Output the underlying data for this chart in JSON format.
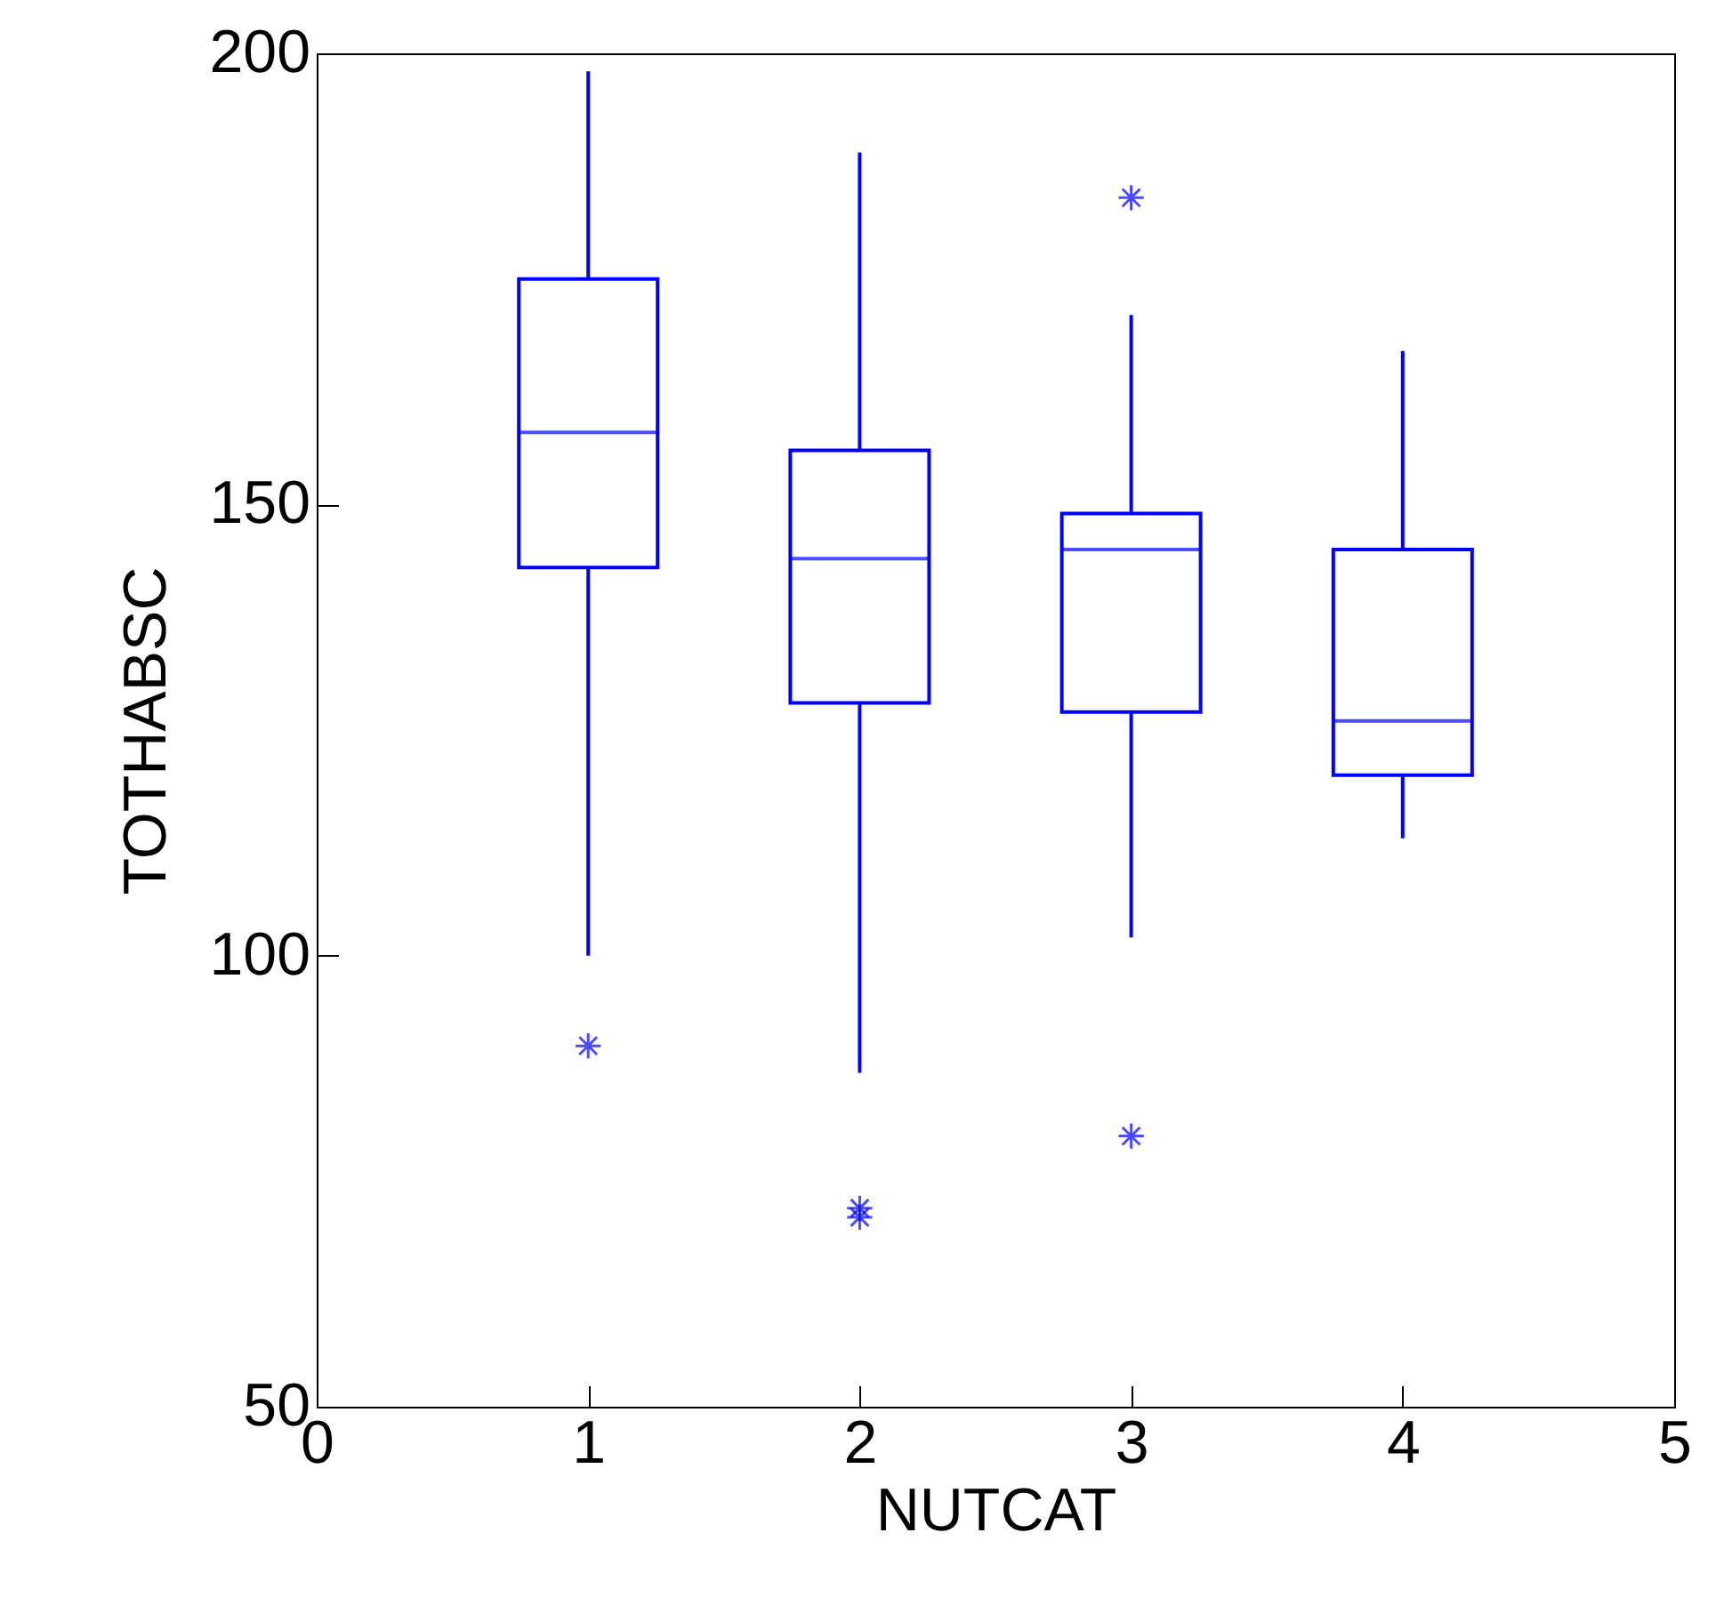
{
  "chart_data": {
    "type": "box",
    "xlabel": "NUTCAT",
    "ylabel": "TOTHABSC",
    "x": [
      1,
      2,
      3,
      4
    ],
    "xlim": [
      0,
      5
    ],
    "xticks": [
      0,
      1,
      2,
      3,
      4,
      5
    ],
    "ylim": [
      50,
      200
    ],
    "yticks": [
      50,
      100,
      150,
      200
    ],
    "grid": false,
    "series": [
      {
        "color": "#0000ff",
        "boxes": [
          {
            "low": 100,
            "q1": 143,
            "median": 158,
            "q3": 175,
            "high": 198,
            "outliers": [
              90
            ]
          },
          {
            "low": 87,
            "q1": 128,
            "median": 144,
            "q3": 156,
            "high": 189,
            "outliers": [
              72,
              71
            ]
          },
          {
            "low": 102,
            "q1": 127,
            "median": 145,
            "q3": 149,
            "high": 171,
            "outliers": [
              184,
              80
            ]
          },
          {
            "low": 113,
            "q1": 120,
            "median": 126,
            "q3": 145,
            "high": 167
          }
        ]
      }
    ]
  }
}
